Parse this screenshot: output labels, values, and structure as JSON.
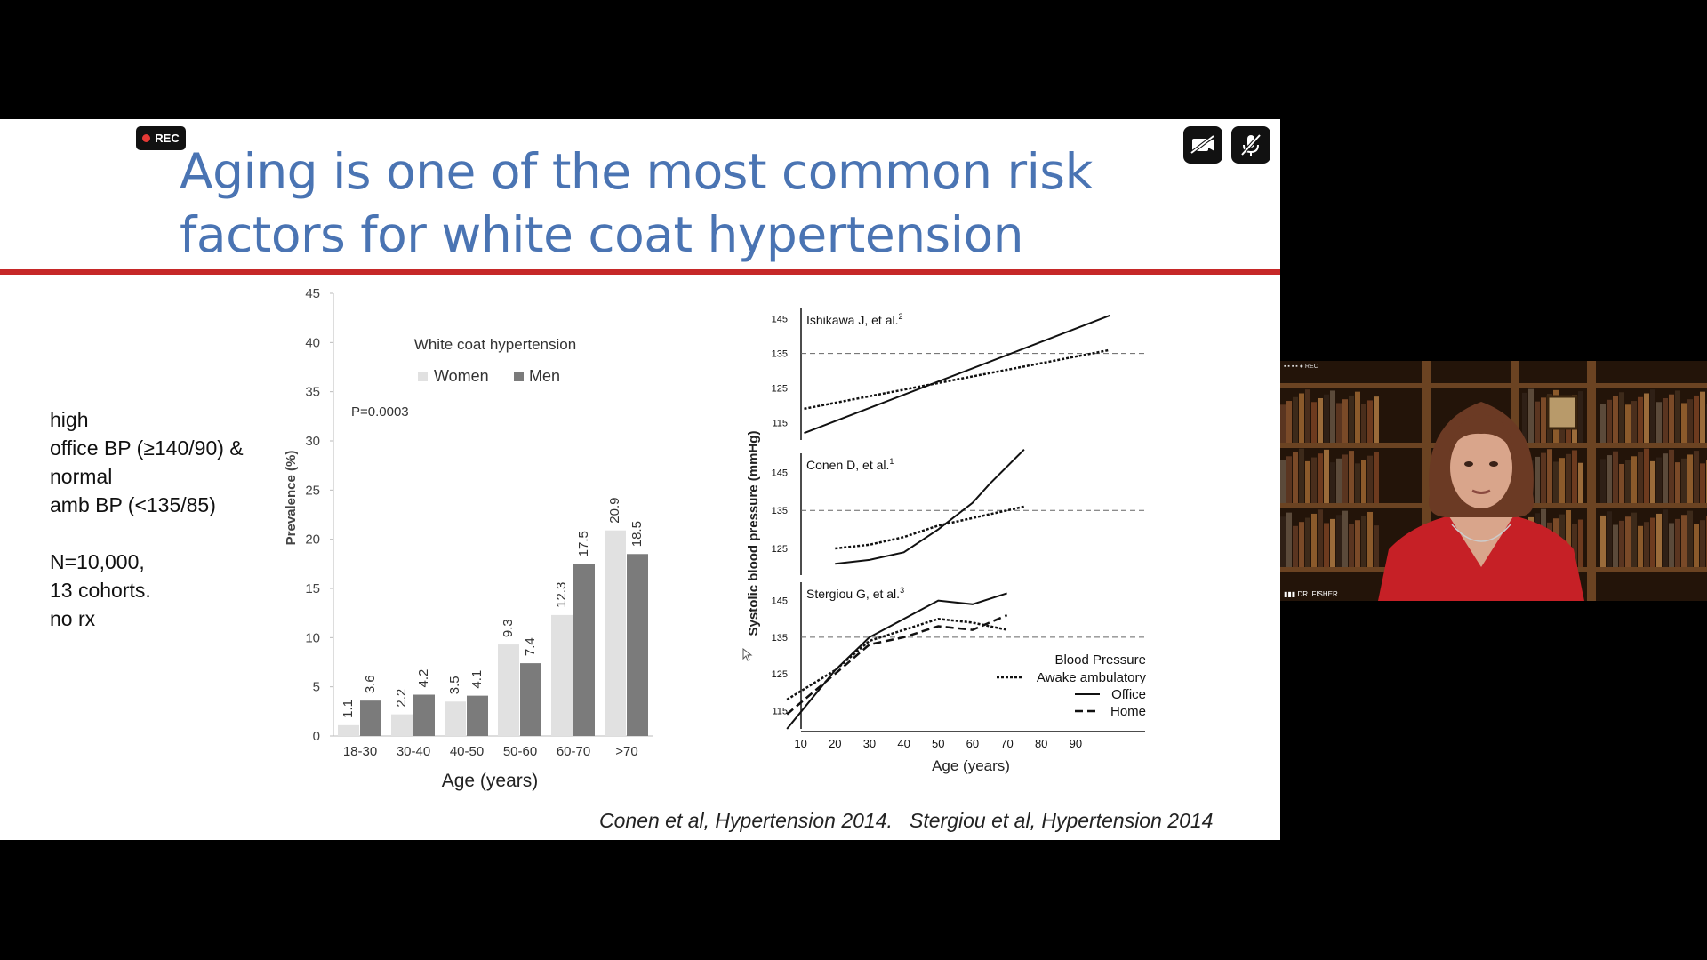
{
  "meeting": {
    "rec_label": "REC",
    "camera_button": "camera-off-icon",
    "mic_button": "mic-off-icon",
    "participant_name": "DR. FISHER",
    "tile_toolbar": "REC"
  },
  "slide": {
    "title": "Aging is one of the most common risk factors for white coat hypertension",
    "title_color": "#4a74b3",
    "rule_color": "#c62828",
    "bullets": [
      "high",
      "office BP (≥140/90) &",
      "normal",
      "amb BP (<135/85)",
      "",
      "N=10,000,",
      "13 cohorts.",
      "no rx"
    ],
    "citation": "Conen et al, Hypertension 2014.   Stergiou et al, Hypertension 2014"
  },
  "chart_data": [
    {
      "type": "bar",
      "title": "White coat hypertension",
      "annotation": "P=0.0003",
      "xlabel": "Age (years)",
      "ylabel": "Prevalence (%)",
      "ylim": [
        0,
        45
      ],
      "yticks": [
        0,
        5,
        10,
        15,
        20,
        25,
        30,
        35,
        40,
        45
      ],
      "categories": [
        "18-30",
        "30-40",
        "40-50",
        "50-60",
        "60-70",
        ">70"
      ],
      "series": [
        {
          "name": "Women",
          "color": "#e1e1e1",
          "values": [
            1.1,
            2.2,
            3.5,
            9.3,
            12.3,
            20.9
          ]
        },
        {
          "name": "Men",
          "color": "#7b7b7b",
          "values": [
            3.6,
            4.2,
            4.1,
            7.4,
            17.5,
            18.5
          ]
        }
      ],
      "legend": "top"
    },
    {
      "type": "line",
      "ylabel": "Systolic blood pressure (mmHg)",
      "xlabel": "Age (years)",
      "xticks": [
        10,
        20,
        30,
        40,
        50,
        60,
        70,
        80,
        90
      ],
      "xlim": [
        0,
        100
      ],
      "reference_line": 135,
      "legend_title": "Blood Pressure",
      "legend_entries": [
        {
          "name": "Awake ambulatory",
          "style": "dotted"
        },
        {
          "name": "Office",
          "style": "solid"
        },
        {
          "name": "Home",
          "style": "dashed"
        }
      ],
      "panels": [
        {
          "label": "Ishikawa J, et al.",
          "sup": "2",
          "ylim": [
            110,
            148
          ],
          "yticks": [
            115,
            125,
            135,
            145
          ],
          "series": [
            {
              "style": "solid",
              "x": [
                11,
                100
              ],
              "y": [
                112,
                146
              ]
            },
            {
              "style": "dotted",
              "x": [
                11,
                100
              ],
              "y": [
                119,
                136
              ]
            }
          ]
        },
        {
          "label": "Conen D, et al.",
          "sup": "1",
          "ylim": [
            118,
            150
          ],
          "yticks": [
            125,
            135,
            145
          ],
          "series": [
            {
              "style": "solid",
              "x": [
                20,
                30,
                40,
                50,
                60,
                65,
                75
              ],
              "y": [
                121,
                122,
                124,
                130,
                137,
                142,
                151
              ]
            },
            {
              "style": "dotted",
              "x": [
                20,
                30,
                40,
                50,
                60,
                65,
                75
              ],
              "y": [
                125,
                126,
                128,
                131,
                133,
                134,
                136
              ]
            }
          ]
        },
        {
          "label": "Stergiou G, et al.",
          "sup": "3",
          "ylim": [
            110,
            150
          ],
          "yticks": [
            115,
            125,
            135,
            145
          ],
          "series": [
            {
              "style": "solid",
              "x": [
                6,
                20,
                30,
                40,
                50,
                60,
                70
              ],
              "y": [
                110,
                126,
                135,
                140,
                145,
                144,
                147
              ]
            },
            {
              "style": "dotted",
              "x": [
                6,
                20,
                30,
                40,
                50,
                60,
                70
              ],
              "y": [
                118,
                126,
                134,
                137,
                140,
                139,
                137
              ]
            },
            {
              "style": "dashed",
              "x": [
                6,
                20,
                30,
                40,
                50,
                60,
                70
              ],
              "y": [
                114,
                125,
                133,
                135,
                138,
                137,
                141
              ]
            }
          ]
        }
      ]
    }
  ]
}
